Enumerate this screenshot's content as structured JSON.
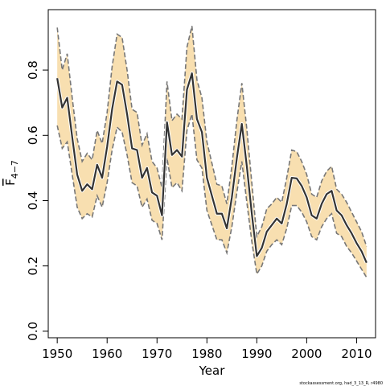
{
  "chart_data": {
    "type": "area",
    "title": "",
    "xlabel": "Year",
    "ylabel": "F̄4−7",
    "ylabel_main": "F",
    "ylabel_sub": "4−7",
    "xlim": [
      1948.2,
      2013.8
    ],
    "ylim": [
      -0.02,
      0.985
    ],
    "xticks": [
      1950,
      1960,
      1970,
      1980,
      1990,
      2000,
      2010
    ],
    "xtick_labels": [
      "1950",
      "1960",
      "1970",
      "1980",
      "1990",
      "2000",
      "2010"
    ],
    "yticks": [
      0.0,
      0.2,
      0.4,
      0.6,
      0.8
    ],
    "ytick_labels": [
      "0.0",
      "0.2",
      "0.4",
      "0.6",
      "0.8"
    ],
    "grid": false,
    "colors": {
      "band": "#f8dfb0",
      "band_edge": "#777777",
      "line": "#333333"
    },
    "x": [
      1950,
      1951,
      1952,
      1953,
      1954,
      1955,
      1956,
      1957,
      1958,
      1959,
      1960,
      1961,
      1962,
      1963,
      1964,
      1965,
      1966,
      1967,
      1968,
      1969,
      1970,
      1971,
      1972,
      1973,
      1974,
      1975,
      1976,
      1977,
      1978,
      1979,
      1980,
      1981,
      1982,
      1983,
      1984,
      1985,
      1986,
      1987,
      1988,
      1989,
      1990,
      1991,
      1992,
      1993,
      1994,
      1995,
      1996,
      1997,
      1998,
      1999,
      2000,
      2001,
      2002,
      2003,
      2004,
      2005,
      2006,
      2007,
      2008,
      2009,
      2010,
      2011,
      2012
    ],
    "series": [
      {
        "values": [
          0.775,
          0.685,
          0.715,
          0.595,
          0.48,
          0.43,
          0.45,
          0.435,
          0.51,
          0.47,
          0.565,
          0.68,
          0.765,
          0.755,
          0.665,
          0.56,
          0.555,
          0.47,
          0.5,
          0.425,
          0.415,
          0.355,
          0.64,
          0.54,
          0.555,
          0.535,
          0.74,
          0.79,
          0.65,
          0.61,
          0.47,
          0.415,
          0.36,
          0.36,
          0.315,
          0.41,
          0.53,
          0.635,
          0.505,
          0.36,
          0.23,
          0.255,
          0.305,
          0.325,
          0.345,
          0.33,
          0.39,
          0.47,
          0.468,
          0.445,
          0.41,
          0.355,
          0.345,
          0.39,
          0.42,
          0.43,
          0.37,
          0.355,
          0.325,
          0.3,
          0.27,
          0.245,
          0.21
        ]
      },
      {
        "name": "upper",
        "values": [
          0.93,
          0.8,
          0.85,
          0.715,
          0.59,
          0.52,
          0.545,
          0.525,
          0.615,
          0.575,
          0.67,
          0.81,
          0.91,
          0.9,
          0.8,
          0.68,
          0.67,
          0.57,
          0.605,
          0.52,
          0.5,
          0.44,
          0.765,
          0.645,
          0.665,
          0.65,
          0.87,
          0.935,
          0.77,
          0.715,
          0.58,
          0.515,
          0.45,
          0.445,
          0.39,
          0.505,
          0.645,
          0.76,
          0.62,
          0.455,
          0.29,
          0.32,
          0.375,
          0.39,
          0.41,
          0.395,
          0.47,
          0.555,
          0.55,
          0.52,
          0.48,
          0.42,
          0.41,
          0.46,
          0.49,
          0.505,
          0.435,
          0.42,
          0.395,
          0.365,
          0.335,
          0.305,
          0.26
        ]
      },
      {
        "name": "lower",
        "values": [
          0.63,
          0.56,
          0.58,
          0.48,
          0.38,
          0.345,
          0.36,
          0.35,
          0.415,
          0.38,
          0.455,
          0.555,
          0.625,
          0.61,
          0.54,
          0.455,
          0.445,
          0.38,
          0.405,
          0.34,
          0.33,
          0.28,
          0.53,
          0.44,
          0.455,
          0.43,
          0.615,
          0.665,
          0.525,
          0.5,
          0.37,
          0.325,
          0.28,
          0.28,
          0.24,
          0.32,
          0.425,
          0.52,
          0.395,
          0.275,
          0.175,
          0.2,
          0.245,
          0.265,
          0.28,
          0.265,
          0.315,
          0.385,
          0.385,
          0.365,
          0.335,
          0.29,
          0.28,
          0.32,
          0.345,
          0.36,
          0.3,
          0.29,
          0.26,
          0.24,
          0.215,
          0.19,
          0.165
        ]
      }
    ]
  },
  "footer": {
    "text": "stockassessment.org, had_3_13_R, r4980"
  }
}
